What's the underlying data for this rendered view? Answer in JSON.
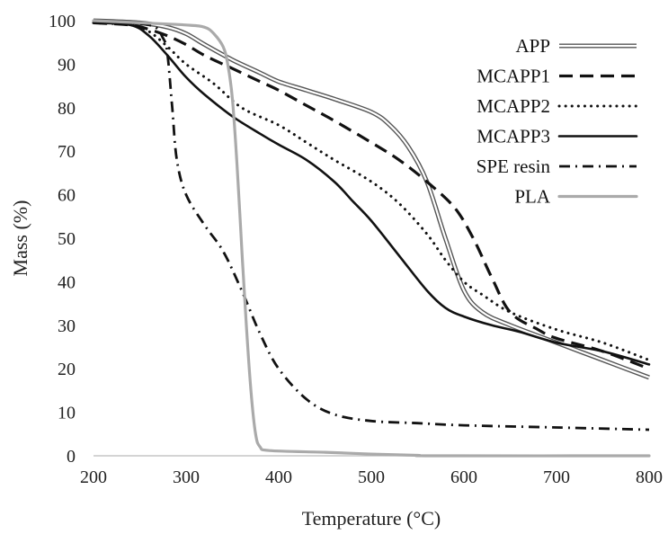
{
  "chart_data": {
    "type": "line",
    "xlabel": "Temperature (°C)",
    "ylabel": "Mass (%)",
    "xlim": [
      200,
      800
    ],
    "ylim": [
      0,
      100
    ],
    "xticks": [
      200,
      300,
      400,
      500,
      600,
      700,
      800
    ],
    "yticks": [
      0,
      10,
      20,
      30,
      40,
      50,
      60,
      70,
      80,
      90,
      100
    ],
    "grid": false,
    "legend_position": "top-right",
    "series": [
      {
        "name": "APP",
        "style": "double",
        "color": "#555555",
        "x": [
          200,
          250,
          280,
          300,
          320,
          350,
          380,
          400,
          430,
          460,
          500,
          520,
          540,
          560,
          580,
          600,
          620,
          650,
          700,
          750,
          800
        ],
        "y": [
          100,
          99.5,
          98.5,
          97,
          94.5,
          91,
          88,
          86,
          84,
          82,
          79,
          76,
          71,
          63,
          50,
          38,
          33,
          30,
          26,
          22,
          18
        ]
      },
      {
        "name": "MCAPP1",
        "style": "dash",
        "color": "#111111",
        "x": [
          200,
          240,
          260,
          280,
          300,
          320,
          350,
          380,
          400,
          430,
          460,
          500,
          530,
          560,
          590,
          610,
          630,
          650,
          680,
          700,
          750,
          800
        ],
        "y": [
          99.5,
          99,
          98,
          96.5,
          94.5,
          92,
          89,
          86,
          84,
          80.5,
          77,
          72,
          68,
          63,
          57,
          50,
          41,
          33,
          29,
          27,
          24,
          20
        ]
      },
      {
        "name": "MCAPP2",
        "style": "dot",
        "color": "#111111",
        "x": [
          200,
          240,
          260,
          280,
          300,
          330,
          360,
          400,
          430,
          460,
          500,
          530,
          560,
          580,
          600,
          620,
          650,
          700,
          750,
          800
        ],
        "y": [
          99.5,
          99,
          97.5,
          94,
          90,
          85.5,
          80,
          76,
          72,
          68,
          63,
          58,
          51,
          45,
          40,
          37,
          33,
          29,
          26,
          22
        ]
      },
      {
        "name": "MCAPP3",
        "style": "solid",
        "color": "#111111",
        "x": [
          200,
          240,
          260,
          280,
          300,
          320,
          350,
          380,
          400,
          430,
          460,
          480,
          500,
          530,
          560,
          580,
          600,
          630,
          660,
          700,
          750,
          800
        ],
        "y": [
          99.5,
          99,
          96.5,
          92,
          87,
          83,
          78,
          74,
          71.5,
          68,
          63,
          58.5,
          54,
          46,
          38,
          34,
          32,
          30,
          28.5,
          26,
          24,
          21
        ]
      },
      {
        "name": "SPE resin",
        "style": "dashdot",
        "color": "#111111",
        "x": [
          200,
          260,
          275,
          280,
          285,
          290,
          300,
          320,
          340,
          360,
          380,
          400,
          430,
          460,
          500,
          550,
          600,
          700,
          800
        ],
        "y": [
          99.5,
          99,
          96,
          92,
          80,
          68,
          60,
          53,
          47,
          38,
          28,
          20,
          13,
          9.5,
          8,
          7.5,
          7,
          6.5,
          6
        ]
      },
      {
        "name": "PLA",
        "style": "solid",
        "color": "#aaaaaa",
        "x": [
          200,
          250,
          300,
          320,
          330,
          340,
          345,
          350,
          355,
          360,
          365,
          370,
          375,
          380,
          390,
          450,
          500,
          550,
          570,
          800
        ],
        "y": [
          100,
          99.5,
          99,
          98.5,
          97,
          94,
          90,
          82,
          67,
          48,
          30,
          15,
          5,
          2,
          1.2,
          0.8,
          0.4,
          0.1,
          0,
          0
        ]
      }
    ]
  }
}
